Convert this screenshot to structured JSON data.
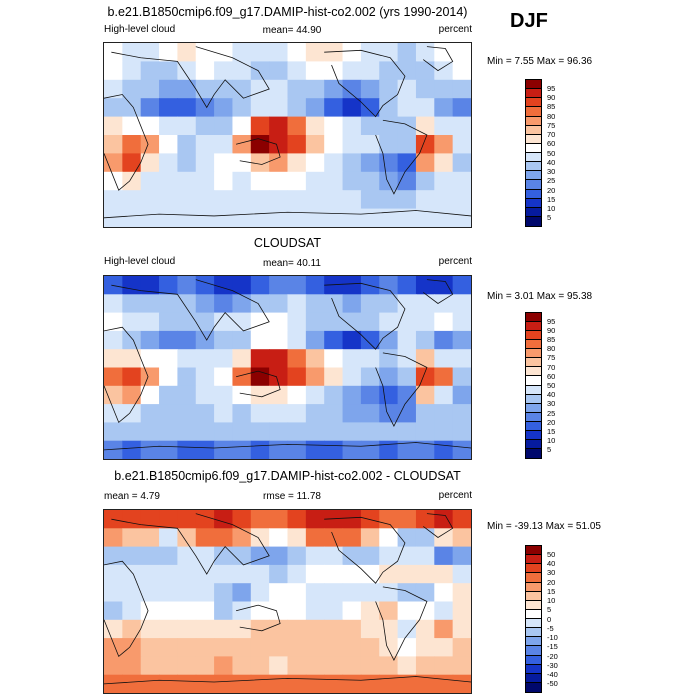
{
  "season": "DJF",
  "chart_data": [
    {
      "type": "heatmap",
      "title": "b.e21.B1850cmip6.f09_g17.DAMIP-hist-co2.002 (yrs 1990-2014)",
      "left_label": "High-level cloud",
      "center_label": "mean=  44.90",
      "right_label": "percent",
      "stats": "Min =   7.55 Max =  96.36",
      "colorbar_levels": [
        "95",
        "90",
        "85",
        "80",
        "75",
        "70",
        "60",
        "50",
        "40",
        "30",
        "25",
        "20",
        "15",
        "10",
        "5"
      ],
      "colorbar_colors": [
        "#8b0000",
        "#c81e14",
        "#e3431f",
        "#f06e3c",
        "#f89a6c",
        "#fbc4a0",
        "#fde5d2",
        "#ffffff",
        "#d6e6fa",
        "#a9c7f2",
        "#7ea5ec",
        "#5a84e6",
        "#3460e0",
        "#1534c8",
        "#061b9e",
        "#00086c"
      ],
      "field": [
        [
          50,
          45,
          40,
          50,
          60,
          55,
          50,
          45,
          40,
          45,
          55,
          65,
          60,
          50,
          45,
          40,
          35,
          40,
          50,
          55
        ],
        [
          55,
          45,
          35,
          30,
          40,
          50,
          45,
          40,
          35,
          35,
          45,
          55,
          50,
          45,
          40,
          35,
          30,
          35,
          45,
          50
        ],
        [
          40,
          35,
          30,
          25,
          25,
          30,
          30,
          35,
          40,
          40,
          35,
          30,
          25,
          20,
          25,
          35,
          40,
          35,
          30,
          30
        ],
        [
          35,
          30,
          20,
          15,
          15,
          20,
          25,
          30,
          45,
          45,
          35,
          25,
          15,
          10,
          15,
          30,
          45,
          40,
          25,
          20
        ],
        [
          60,
          55,
          50,
          45,
          40,
          35,
          35,
          50,
          85,
          90,
          80,
          65,
          50,
          40,
          35,
          30,
          35,
          60,
          40,
          45
        ],
        [
          70,
          80,
          75,
          50,
          35,
          40,
          45,
          75,
          95,
          90,
          85,
          70,
          55,
          45,
          40,
          35,
          30,
          85,
          75,
          40
        ],
        [
          75,
          85,
          60,
          40,
          35,
          45,
          50,
          55,
          70,
          75,
          65,
          55,
          45,
          35,
          25,
          20,
          15,
          75,
          60,
          30
        ],
        [
          55,
          60,
          45,
          40,
          40,
          45,
          50,
          45,
          50,
          55,
          50,
          45,
          40,
          35,
          30,
          25,
          20,
          35,
          40,
          40
        ],
        [
          45,
          40,
          40,
          40,
          45,
          45,
          45,
          40,
          40,
          40,
          45,
          45,
          40,
          40,
          35,
          35,
          35,
          40,
          40,
          40
        ],
        [
          40,
          40,
          40,
          40,
          40,
          40,
          40,
          40,
          40,
          40,
          40,
          40,
          40,
          40,
          40,
          40,
          40,
          40,
          40,
          40
        ]
      ]
    },
    {
      "type": "heatmap",
      "title": "CLOUDSAT",
      "left_label": "High-level cloud",
      "center_label": "mean=  40.11",
      "right_label": "percent",
      "stats": "Min =   3.01 Max =  95.38",
      "colorbar_levels": [
        "95",
        "90",
        "85",
        "80",
        "75",
        "70",
        "60",
        "50",
        "40",
        "30",
        "25",
        "20",
        "15",
        "10",
        "5"
      ],
      "colorbar_colors": [
        "#8b0000",
        "#c81e14",
        "#e3431f",
        "#f06e3c",
        "#f89a6c",
        "#fbc4a0",
        "#fde5d2",
        "#ffffff",
        "#d6e6fa",
        "#a9c7f2",
        "#7ea5ec",
        "#5a84e6",
        "#3460e0",
        "#1534c8",
        "#061b9e",
        "#00086c"
      ],
      "field": [
        [
          15,
          10,
          10,
          15,
          20,
          15,
          10,
          10,
          15,
          20,
          20,
          15,
          10,
          10,
          15,
          20,
          15,
          10,
          10,
          15
        ],
        [
          40,
          35,
          30,
          35,
          30,
          25,
          20,
          25,
          30,
          35,
          40,
          35,
          30,
          25,
          30,
          35,
          40,
          45,
          40,
          40
        ],
        [
          50,
          45,
          40,
          35,
          30,
          35,
          40,
          45,
          55,
          55,
          45,
          35,
          30,
          30,
          35,
          40,
          45,
          40,
          50,
          45
        ],
        [
          40,
          35,
          25,
          20,
          20,
          25,
          30,
          35,
          50,
          55,
          40,
          25,
          15,
          10,
          15,
          25,
          40,
          35,
          20,
          25
        ],
        [
          65,
          60,
          55,
          50,
          45,
          40,
          45,
          65,
          90,
          90,
          80,
          70,
          55,
          45,
          40,
          35,
          45,
          70,
          40,
          40
        ],
        [
          80,
          85,
          75,
          50,
          35,
          40,
          55,
          80,
          95,
          90,
          85,
          75,
          60,
          45,
          35,
          25,
          30,
          85,
          80,
          35
        ],
        [
          70,
          75,
          55,
          35,
          30,
          40,
          45,
          50,
          60,
          65,
          55,
          45,
          35,
          25,
          20,
          15,
          20,
          70,
          45,
          25
        ],
        [
          40,
          45,
          35,
          30,
          30,
          35,
          40,
          35,
          40,
          45,
          40,
          35,
          30,
          25,
          25,
          20,
          20,
          30,
          35,
          30
        ],
        [
          30,
          30,
          30,
          35,
          35,
          30,
          30,
          30,
          30,
          35,
          35,
          30,
          30,
          30,
          30,
          30,
          30,
          30,
          30,
          30
        ],
        [
          20,
          15,
          20,
          20,
          15,
          15,
          20,
          20,
          15,
          20,
          20,
          15,
          15,
          20,
          20,
          15,
          20,
          20,
          15,
          20
        ]
      ]
    },
    {
      "type": "heatmap",
      "title": "b.e21.B1850cmip6.f09_g17.DAMIP-hist-co2.002 - CLOUDSAT",
      "left_label": "mean =   4.79",
      "center_label": "rmse =  11.78",
      "right_label": "percent",
      "stats": "Min = -39.13 Max =  51.05",
      "colorbar_levels": [
        "50",
        "40",
        "30",
        "20",
        "15",
        "10",
        "5",
        "0",
        "-5",
        "-10",
        "-15",
        "-20",
        "-30",
        "-40",
        "-50"
      ],
      "colorbar_colors": [
        "#8b0000",
        "#c81e14",
        "#e3431f",
        "#f06e3c",
        "#f89a6c",
        "#fbc4a0",
        "#fde5d2",
        "#ffffff",
        "#d6e6fa",
        "#a9c7f2",
        "#7ea5ec",
        "#5a84e6",
        "#3460e0",
        "#1534c8",
        "#061b9e",
        "#00086c"
      ],
      "field": [
        [
          35,
          30,
          30,
          30,
          35,
          35,
          40,
          35,
          25,
          25,
          35,
          40,
          40,
          40,
          30,
          20,
          20,
          30,
          40,
          35
        ],
        [
          15,
          10,
          10,
          -5,
          10,
          25,
          25,
          15,
          5,
          0,
          5,
          20,
          20,
          20,
          10,
          0,
          -10,
          -10,
          5,
          10
        ],
        [
          -10,
          -10,
          -10,
          -10,
          -5,
          -5,
          -10,
          -10,
          -15,
          -15,
          -10,
          -5,
          -5,
          -10,
          -10,
          -5,
          -5,
          -5,
          -20,
          -15
        ],
        [
          -5,
          -5,
          -5,
          -5,
          -5,
          -5,
          -5,
          -5,
          -5,
          -10,
          -5,
          0,
          0,
          0,
          0,
          5,
          5,
          5,
          5,
          -5
        ],
        [
          -5,
          -5,
          -5,
          -5,
          -5,
          -5,
          -10,
          -15,
          -5,
          0,
          0,
          -5,
          -5,
          -5,
          -5,
          -5,
          -10,
          -10,
          0,
          5
        ],
        [
          -10,
          -5,
          0,
          0,
          0,
          0,
          -10,
          -5,
          0,
          0,
          0,
          -5,
          -5,
          0,
          5,
          10,
          0,
          0,
          -5,
          5
        ],
        [
          5,
          10,
          5,
          5,
          5,
          5,
          5,
          5,
          10,
          10,
          10,
          10,
          10,
          10,
          5,
          5,
          -5,
          5,
          15,
          5
        ],
        [
          15,
          15,
          10,
          10,
          10,
          10,
          10,
          10,
          10,
          10,
          10,
          10,
          10,
          10,
          10,
          5,
          0,
          5,
          5,
          10
        ],
        [
          15,
          15,
          10,
          10,
          10,
          10,
          15,
          10,
          10,
          5,
          10,
          10,
          10,
          10,
          10,
          10,
          5,
          10,
          10,
          10
        ],
        [
          20,
          20,
          20,
          20,
          20,
          20,
          20,
          20,
          20,
          20,
          20,
          20,
          20,
          20,
          20,
          20,
          20,
          20,
          20,
          20
        ]
      ]
    }
  ]
}
